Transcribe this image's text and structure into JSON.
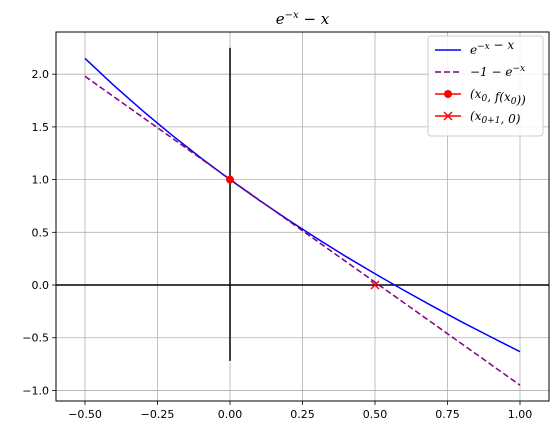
{
  "chart_data": {
    "type": "line",
    "title": "e^{-x} − x",
    "title_main": "e",
    "title_sup": "−x",
    "title_tail": " − x",
    "xlabel": "",
    "ylabel": "",
    "xlim": [
      -0.6,
      1.1
    ],
    "ylim": [
      -1.1,
      2.4
    ],
    "xticks": [
      -0.5,
      -0.25,
      0.0,
      0.25,
      0.5,
      0.75,
      1.0
    ],
    "xtick_labels": [
      "−0.50",
      "−0.25",
      "0.00",
      "0.25",
      "0.50",
      "0.75",
      "1.00"
    ],
    "yticks": [
      -1.0,
      -0.5,
      0.0,
      0.5,
      1.0,
      1.5,
      2.0
    ],
    "ytick_labels": [
      "−1.0",
      "−0.5",
      "0.0",
      "0.5",
      "1.0",
      "1.5",
      "2.0"
    ],
    "grid": true,
    "legend_position": "top-right",
    "series": [
      {
        "name": "e^{-x} − x",
        "color": "#0000ff",
        "style": "solid",
        "x": [
          -0.5,
          -0.4,
          -0.3,
          -0.2,
          -0.1,
          0.0,
          0.1,
          0.2,
          0.3,
          0.4,
          0.5,
          0.6,
          0.7,
          0.8,
          0.9,
          1.0
        ],
        "y": [
          2.149,
          1.892,
          1.65,
          1.421,
          1.205,
          1.0,
          0.805,
          0.619,
          0.441,
          0.27,
          0.107,
          -0.051,
          -0.203,
          -0.351,
          -0.493,
          -0.632
        ]
      },
      {
        "name": "−1 − e^{-x}",
        "color": "#800080",
        "style": "dashed",
        "x": [
          -0.5,
          1.0
        ],
        "y": [
          1.98,
          -0.95
        ]
      },
      {
        "name": "(x_0, f(x_0))",
        "color": "#ff0000",
        "style": "marker-circle",
        "x": [
          0.0
        ],
        "y": [
          1.0
        ]
      },
      {
        "name": "(x_{0+1}, 0)",
        "color": "#ff0000",
        "style": "marker-x",
        "x": [
          0.5
        ],
        "y": [
          0.0
        ]
      }
    ],
    "axis_lines": [
      {
        "name": "horizontal-axis-line",
        "color": "#000000",
        "x": [
          -0.6,
          1.1
        ],
        "y": [
          0.0,
          0.0
        ]
      },
      {
        "name": "vertical-axis-line",
        "color": "#000000",
        "x": [
          0.0,
          0.0
        ],
        "y": [
          -0.72,
          2.25
        ]
      }
    ]
  }
}
